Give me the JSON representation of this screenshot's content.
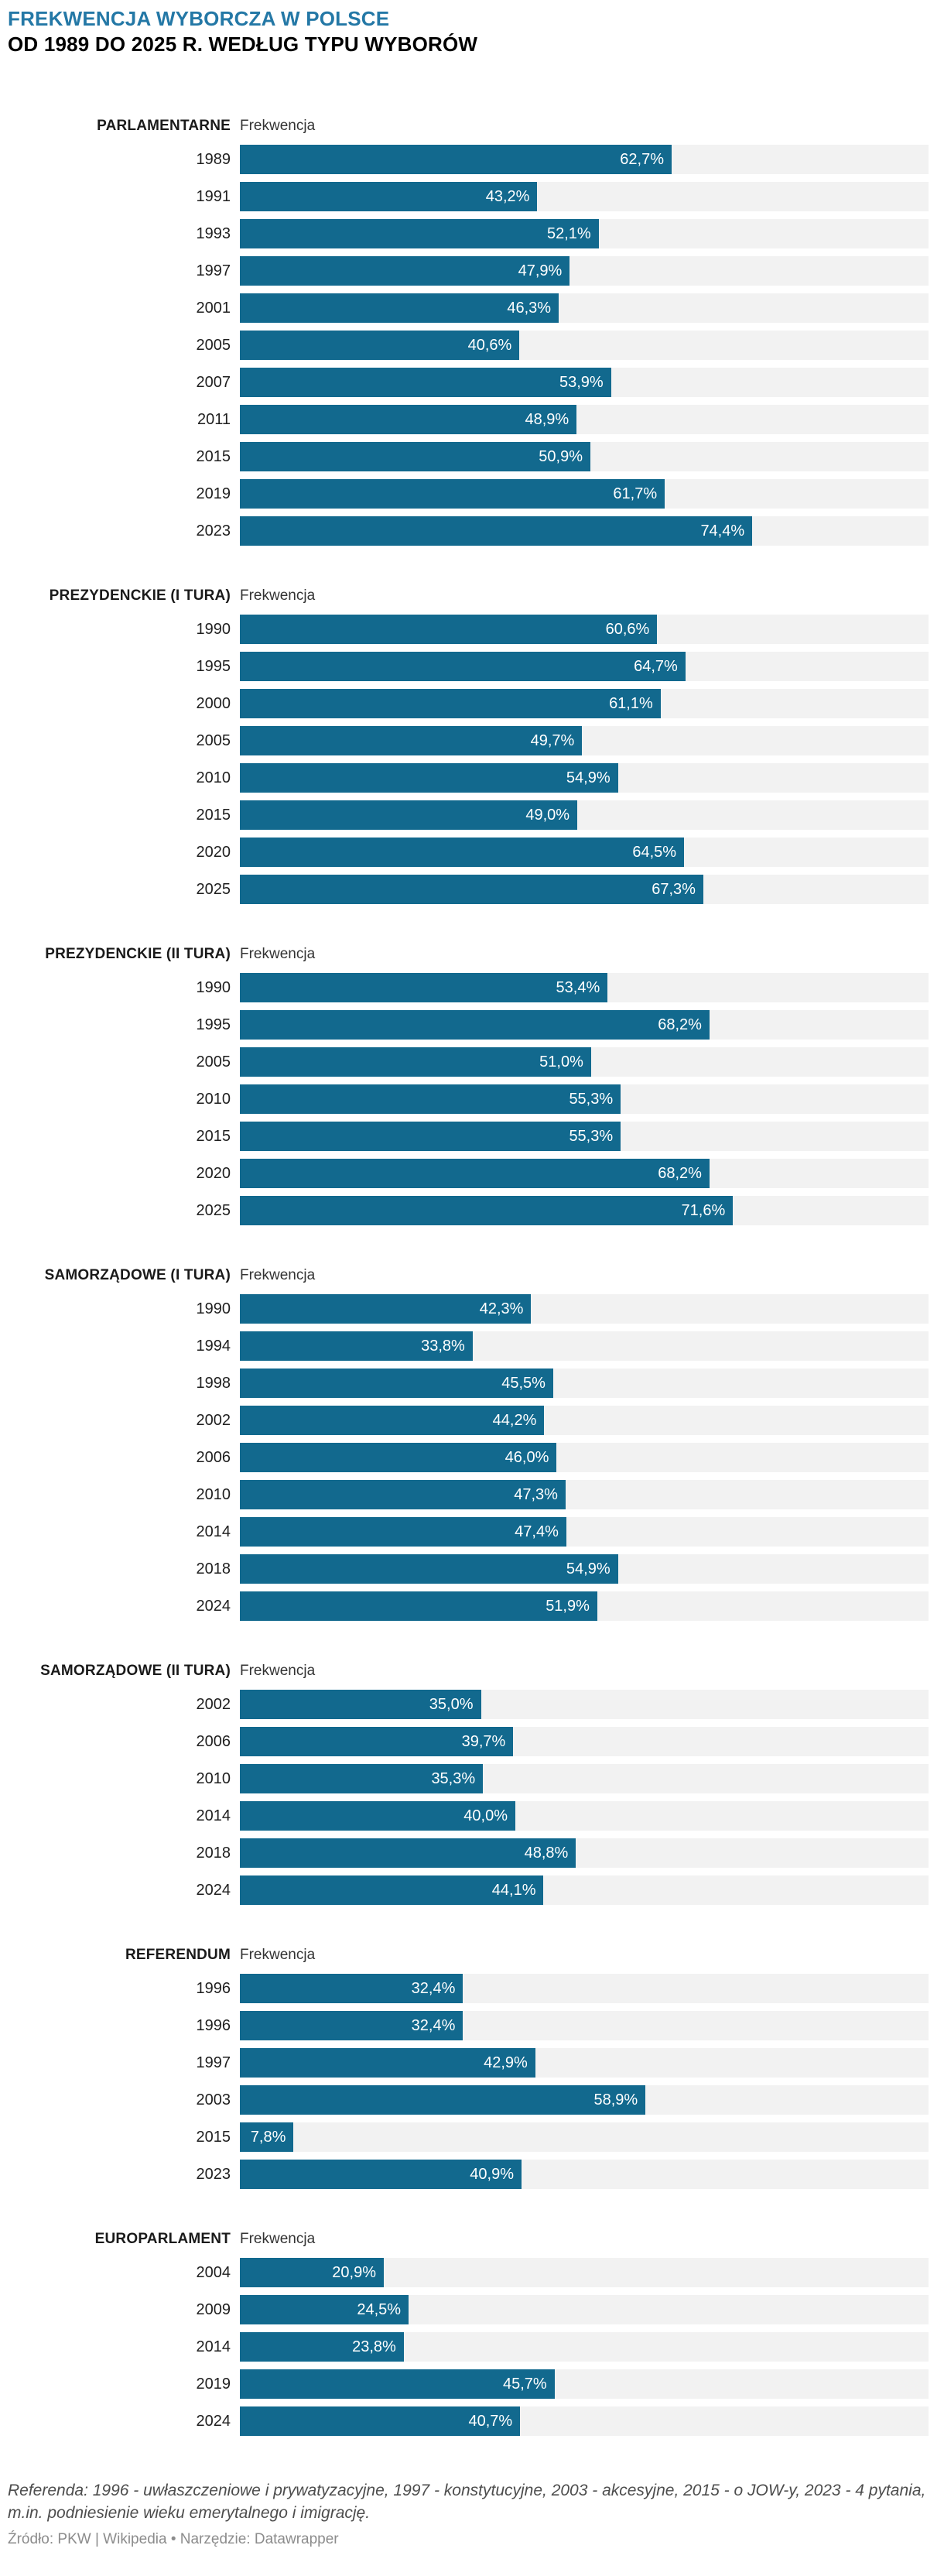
{
  "header": {
    "title_line1": "FREKWENCJA WYBORCZA W POLSCE",
    "title_line2": "OD 1989 DO 2025 R. WEDŁUG TYPU WYBORÓW"
  },
  "colors": {
    "bar": "#12698e",
    "track": "#f2f2f2",
    "title_accent": "#2478a6"
  },
  "value_column_header": "Frekwencja",
  "chart_data": [
    {
      "type": "bar",
      "title": "PARLAMENTARNE",
      "value_header": "Frekwencja",
      "unit": "%",
      "xlim": [
        0,
        100
      ],
      "categories": [
        "1989",
        "1991",
        "1993",
        "1997",
        "2001",
        "2005",
        "2007",
        "2011",
        "2015",
        "2019",
        "2023"
      ],
      "values": [
        62.7,
        43.2,
        52.1,
        47.9,
        46.3,
        40.6,
        53.9,
        48.9,
        50.9,
        61.7,
        74.4
      ],
      "labels": [
        "62,7%",
        "43,2%",
        "52,1%",
        "47,9%",
        "46,3%",
        "40,6%",
        "53,9%",
        "48,9%",
        "50,9%",
        "61,7%",
        "74,4%"
      ]
    },
    {
      "type": "bar",
      "title": "PREZYDENCKIE (I TURA)",
      "value_header": "Frekwencja",
      "unit": "%",
      "xlim": [
        0,
        100
      ],
      "categories": [
        "1990",
        "1995",
        "2000",
        "2005",
        "2010",
        "2015",
        "2020",
        "2025"
      ],
      "values": [
        60.6,
        64.7,
        61.1,
        49.7,
        54.9,
        49.0,
        64.5,
        67.3
      ],
      "labels": [
        "60,6%",
        "64,7%",
        "61,1%",
        "49,7%",
        "54,9%",
        "49,0%",
        "64,5%",
        "67,3%"
      ]
    },
    {
      "type": "bar",
      "title": "PREZYDENCKIE (II TURA)",
      "value_header": "Frekwencja",
      "unit": "%",
      "xlim": [
        0,
        100
      ],
      "categories": [
        "1990",
        "1995",
        "2005",
        "2010",
        "2015",
        "2020",
        "2025"
      ],
      "values": [
        53.4,
        68.2,
        51.0,
        55.3,
        55.3,
        68.2,
        71.6
      ],
      "labels": [
        "53,4%",
        "68,2%",
        "51,0%",
        "55,3%",
        "55,3%",
        "68,2%",
        "71,6%"
      ]
    },
    {
      "type": "bar",
      "title": "SAMORZĄDOWE (I TURA)",
      "value_header": "Frekwencja",
      "unit": "%",
      "xlim": [
        0,
        100
      ],
      "categories": [
        "1990",
        "1994",
        "1998",
        "2002",
        "2006",
        "2010",
        "2014",
        "2018",
        "2024"
      ],
      "values": [
        42.3,
        33.8,
        45.5,
        44.2,
        46.0,
        47.3,
        47.4,
        54.9,
        51.9
      ],
      "labels": [
        "42,3%",
        "33,8%",
        "45,5%",
        "44,2%",
        "46,0%",
        "47,3%",
        "47,4%",
        "54,9%",
        "51,9%"
      ]
    },
    {
      "type": "bar",
      "title": "SAMORZĄDOWE (II TURA)",
      "value_header": "Frekwencja",
      "unit": "%",
      "xlim": [
        0,
        100
      ],
      "categories": [
        "2002",
        "2006",
        "2010",
        "2014",
        "2018",
        "2024"
      ],
      "values": [
        35.0,
        39.7,
        35.3,
        40.0,
        48.8,
        44.1
      ],
      "labels": [
        "35,0%",
        "39,7%",
        "35,3%",
        "40,0%",
        "48,8%",
        "44,1%"
      ]
    },
    {
      "type": "bar",
      "title": "REFERENDUM",
      "value_header": "Frekwencja",
      "unit": "%",
      "xlim": [
        0,
        100
      ],
      "categories": [
        "1996",
        "1996",
        "1997",
        "2003",
        "2015",
        "2023"
      ],
      "values": [
        32.4,
        32.4,
        42.9,
        58.9,
        7.8,
        40.9
      ],
      "labels": [
        "32,4%",
        "32,4%",
        "42,9%",
        "58,9%",
        "7,8%",
        "40,9%"
      ]
    },
    {
      "type": "bar",
      "title": "EUROPARLAMENT",
      "value_header": "Frekwencja",
      "unit": "%",
      "xlim": [
        0,
        100
      ],
      "categories": [
        "2004",
        "2009",
        "2014",
        "2019",
        "2024"
      ],
      "values": [
        20.9,
        24.5,
        23.8,
        45.7,
        40.7
      ],
      "labels": [
        "20,9%",
        "24,5%",
        "23,8%",
        "45,7%",
        "40,7%"
      ]
    }
  ],
  "footer": {
    "note": "Referenda: 1996 - uwłaszczeniowe i prywatyzacyjne, 1997 - konstytucyjne, 2003 - akcesyjne, 2015 - o JOW-y, 2023 - 4 pytania, m.in. podniesienie wieku emerytalnego i imigrację.",
    "source": "Źródło: PKW | Wikipedia • Narzędzie: Datawrapper"
  }
}
